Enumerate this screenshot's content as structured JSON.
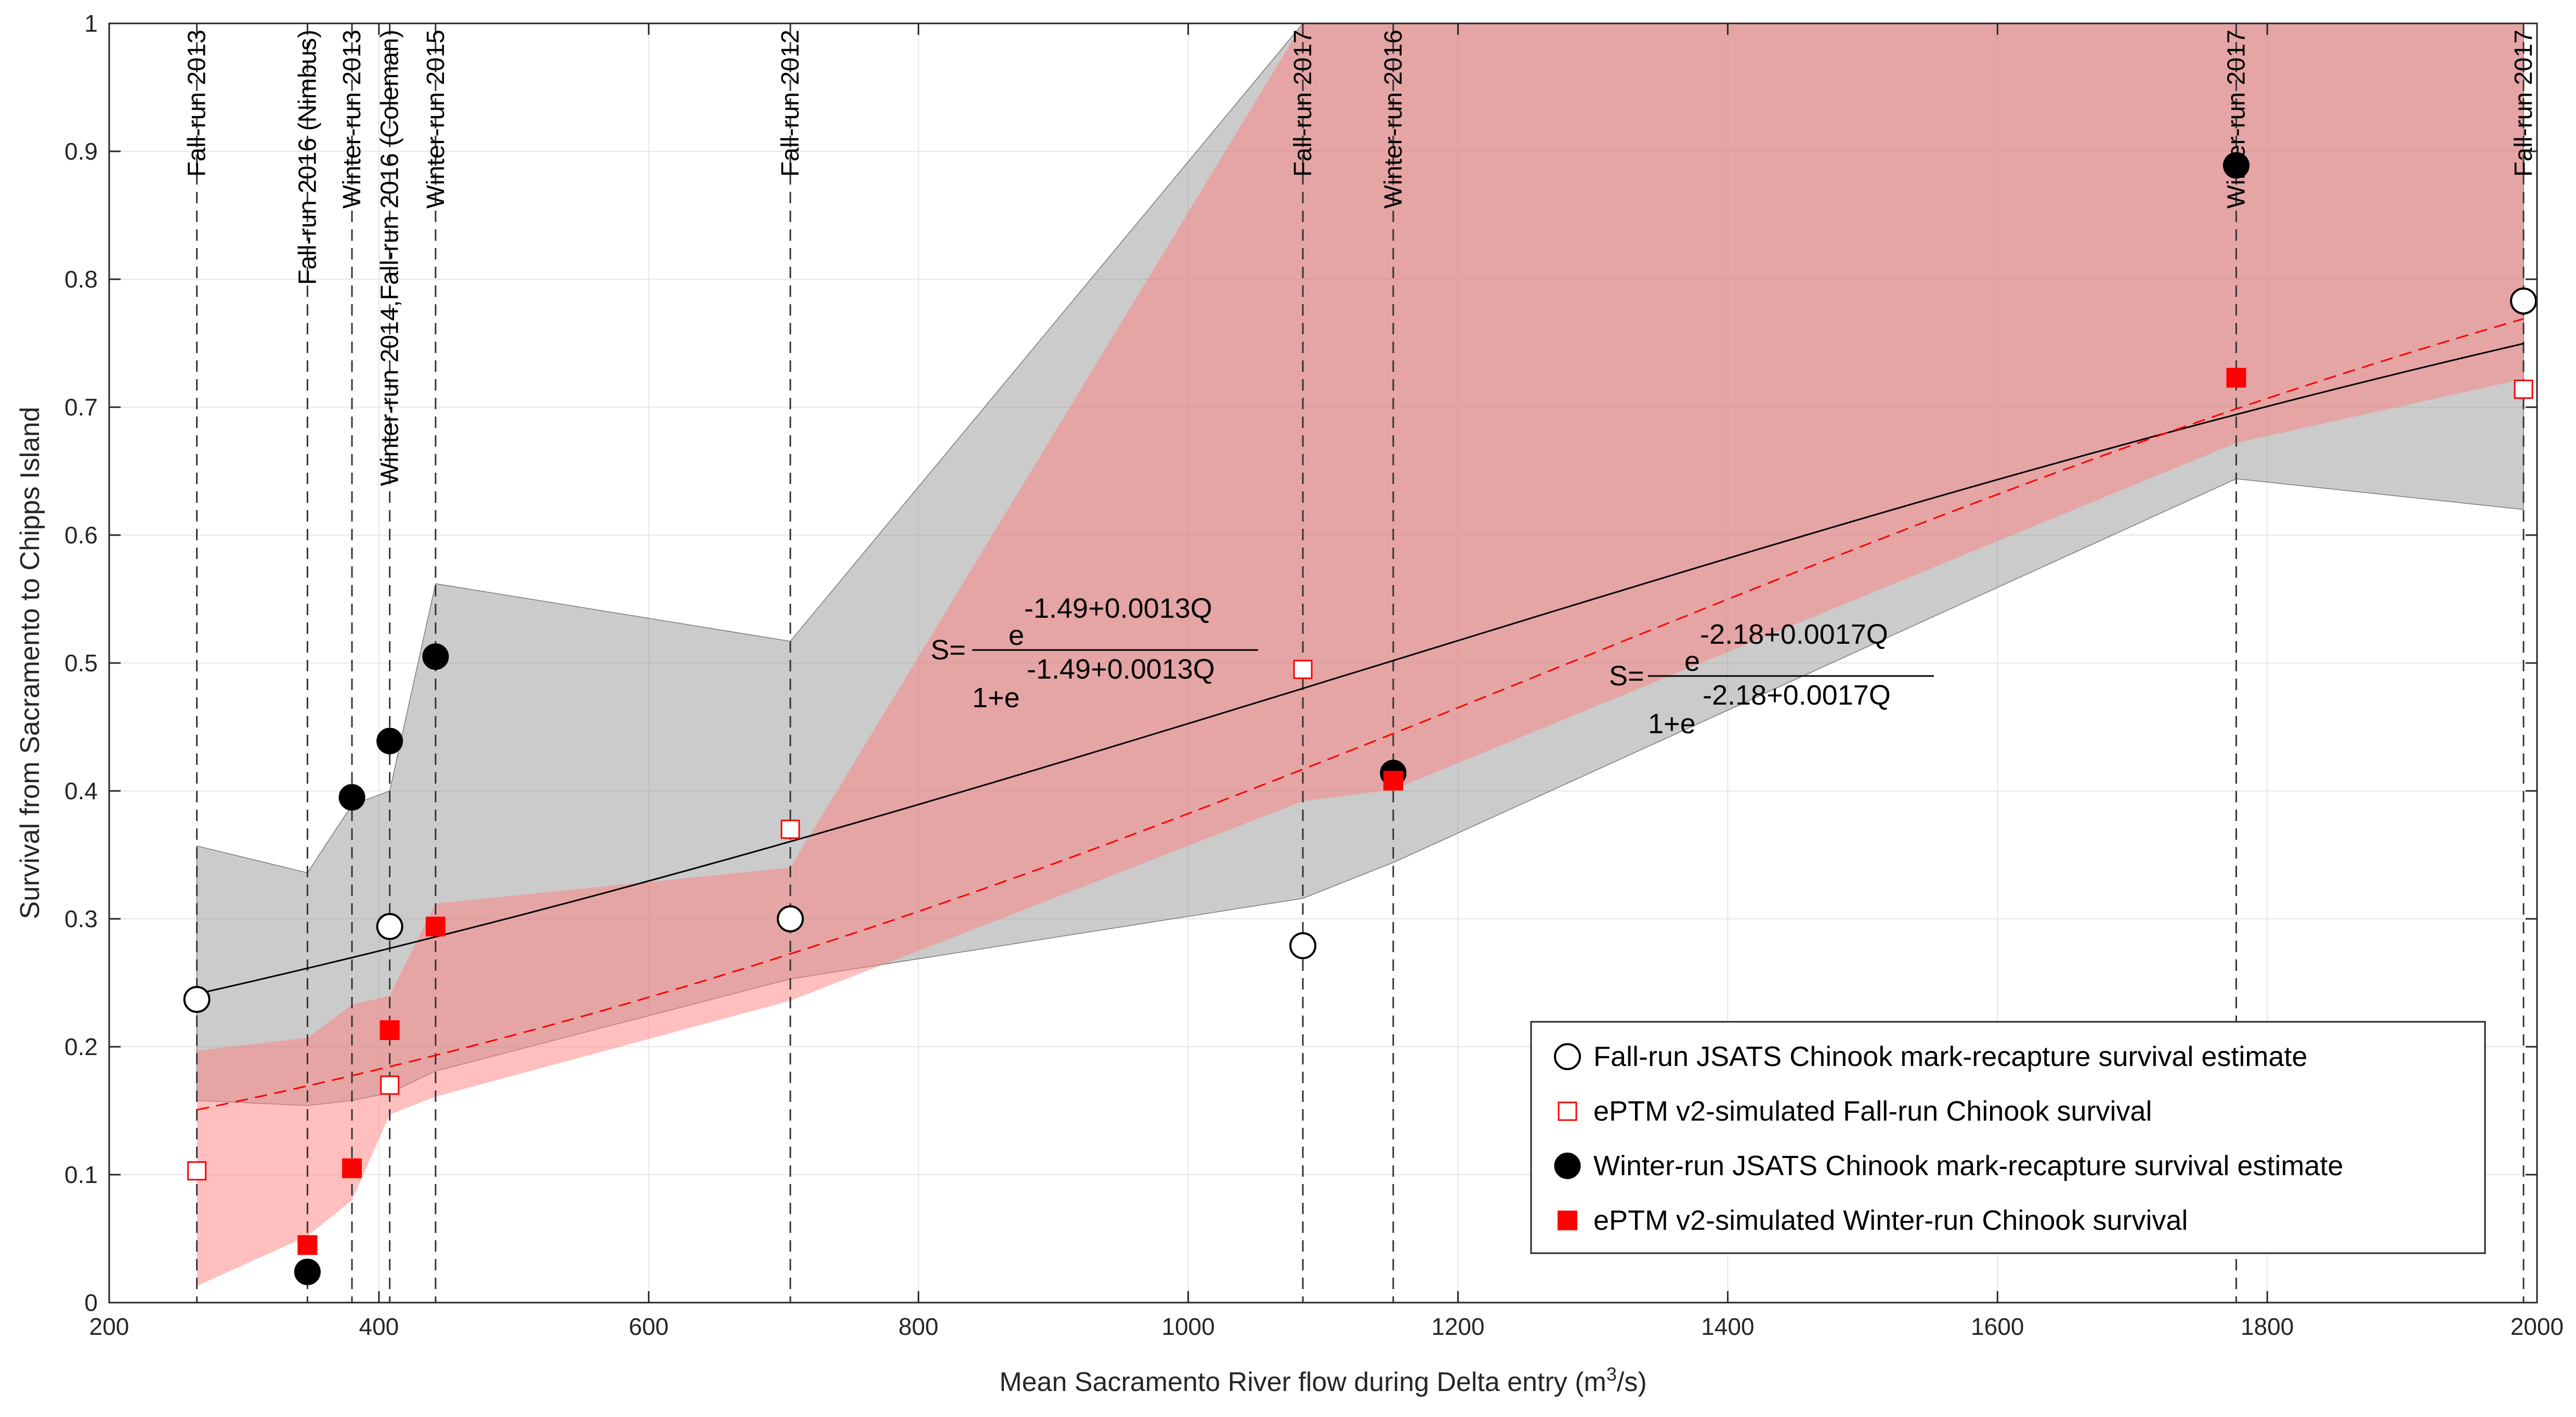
{
  "chart_data": {
    "type": "scatter",
    "xlabel": "Mean Sacramento River flow during Delta entry (m",
    "xlabel_sup": "3",
    "xlabel_tail": "/s)",
    "ylabel": "Survival from Sacramento to Chipps Island",
    "xlim": [
      200,
      2000
    ],
    "ylim": [
      0,
      1
    ],
    "x_ticks": [
      200,
      400,
      600,
      800,
      1000,
      1200,
      1400,
      1600,
      1800,
      2000
    ],
    "x_tick_labels": [
      "200",
      "400",
      "600",
      "800",
      "1000",
      "1200",
      "1400",
      "1600",
      "1800",
      "2000"
    ],
    "y_ticks": [
      0,
      0.1,
      0.2,
      0.3,
      0.4,
      0.5,
      0.6,
      0.7,
      0.8,
      0.9,
      1
    ],
    "y_tick_labels": [
      "0",
      "0.1",
      "0.2",
      "0.3",
      "0.4",
      "0.5",
      "0.6",
      "0.7",
      "0.8",
      "0.9",
      "1"
    ],
    "grid": true,
    "legend_position": "bottom-right",
    "colors": {
      "black": "#000000",
      "red": "#ff0000",
      "grey_band": "#c8c8c8",
      "red_band": "#f7a7a7",
      "overlap": "#d6a2a2"
    },
    "vertical_lines": [
      {
        "x": 265,
        "label": "Fall-run 2013"
      },
      {
        "x": 347,
        "label": "Fall-run 2016 (Nimbus)"
      },
      {
        "x": 380,
        "label": "Winter-run 2013"
      },
      {
        "x": 408,
        "label": "Winter-run 2014,Fall-run 2016 (Coleman)"
      },
      {
        "x": 442,
        "label": "Winter-run 2015"
      },
      {
        "x": 705,
        "label": "Fall-run 2012"
      },
      {
        "x": 1085,
        "label": "Fall-run 2017"
      },
      {
        "x": 1152,
        "label": "Winter-run 2016"
      },
      {
        "x": 1777,
        "label": "Winter-run 2017"
      },
      {
        "x": 1990,
        "label": "Fall-run 2017"
      }
    ],
    "series": [
      {
        "name": "Fall-run JSATS Chinook mark-recapture survival estimate",
        "marker": "open-circle",
        "points": [
          [
            265,
            0.237
          ],
          [
            408,
            0.294
          ],
          [
            705,
            0.3
          ],
          [
            1085,
            0.279
          ],
          [
            1990,
            0.783
          ]
        ]
      },
      {
        "name": "ePTM v2-simulated Fall-run Chinook survival",
        "marker": "open-square",
        "points": [
          [
            265,
            0.103
          ],
          [
            408,
            0.17
          ],
          [
            705,
            0.37
          ],
          [
            1085,
            0.495
          ],
          [
            1990,
            0.714
          ]
        ]
      },
      {
        "name": "Winter-run JSATS Chinook mark-recapture survival estimate",
        "marker": "filled-circle",
        "points": [
          [
            347,
            0.024
          ],
          [
            380,
            0.395
          ],
          [
            408,
            0.439
          ],
          [
            442,
            0.505
          ],
          [
            1152,
            0.414
          ],
          [
            1777,
            0.889
          ]
        ]
      },
      {
        "name": "ePTM v2-simulated Winter-run Chinook survival",
        "marker": "filled-square",
        "points": [
          [
            347,
            0.045
          ],
          [
            380,
            0.105
          ],
          [
            408,
            0.213
          ],
          [
            442,
            0.294
          ],
          [
            1152,
            0.408
          ],
          [
            1777,
            0.723
          ]
        ]
      }
    ],
    "fits": [
      {
        "kind": "solid",
        "a": -1.49,
        "b": 0.0013,
        "x_from": 265,
        "x_to": 1990
      },
      {
        "kind": "dashed",
        "a": -2.18,
        "b": 0.0017,
        "x_from": 265,
        "x_to": 1990
      }
    ],
    "bands": [
      {
        "kind": "grey",
        "upper": [
          [
            265,
            0.357
          ],
          [
            347,
            0.336
          ],
          [
            380,
            0.389
          ],
          [
            408,
            0.4
          ],
          [
            442,
            0.562
          ],
          [
            705,
            0.517
          ],
          [
            1085,
            1.0
          ],
          [
            1152,
            1.0
          ],
          [
            1777,
            1.0
          ],
          [
            1990,
            1.0
          ]
        ],
        "lower": [
          [
            265,
            0.158
          ],
          [
            347,
            0.154
          ],
          [
            380,
            0.158
          ],
          [
            408,
            0.164
          ],
          [
            442,
            0.181
          ],
          [
            705,
            0.253
          ],
          [
            1085,
            0.316
          ],
          [
            1152,
            0.344
          ],
          [
            1777,
            0.644
          ],
          [
            1990,
            0.62
          ]
        ]
      },
      {
        "kind": "red",
        "upper": [
          [
            265,
            0.197
          ],
          [
            347,
            0.207
          ],
          [
            380,
            0.233
          ],
          [
            408,
            0.24
          ],
          [
            442,
            0.312
          ],
          [
            705,
            0.34
          ],
          [
            1085,
            1.0
          ],
          [
            1152,
            1.0
          ],
          [
            1777,
            1.0
          ],
          [
            1990,
            1.0
          ]
        ],
        "lower": [
          [
            265,
            0.013
          ],
          [
            347,
            0.052
          ],
          [
            380,
            0.08
          ],
          [
            408,
            0.147
          ],
          [
            442,
            0.161
          ],
          [
            705,
            0.236
          ],
          [
            1085,
            0.392
          ],
          [
            1152,
            0.401
          ],
          [
            1777,
            0.672
          ],
          [
            1990,
            0.722
          ]
        ]
      }
    ],
    "equations": [
      {
        "prefix": "S=",
        "numerator": "e",
        "numerator_exp": "-1.49+0.0013Q",
        "denominator": "1+e",
        "denominator_exp": "-1.49+0.0013Q"
      },
      {
        "prefix": "S=",
        "numerator": "e",
        "numerator_exp": "-2.18+0.0017Q",
        "denominator": "1+e",
        "denominator_exp": "-2.18+0.0017Q"
      }
    ]
  }
}
